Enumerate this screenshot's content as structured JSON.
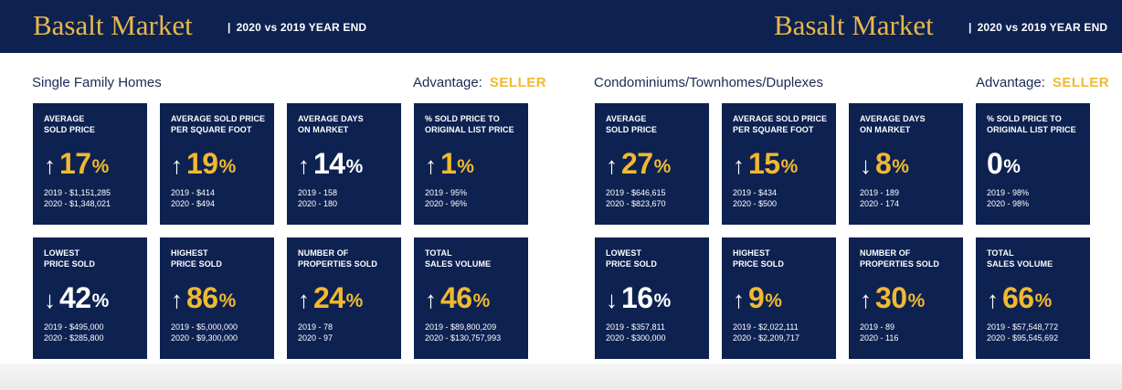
{
  "panels": [
    {
      "brand": "Basalt Market",
      "subtitle": "2020 vs 2019 YEAR END",
      "section": "Single Family Homes",
      "advantage_label": "Advantage:",
      "advantage_value": "SELLER",
      "cards": [
        {
          "label1": "AVERAGE",
          "label2": "SOLD PRICE",
          "direction": "up",
          "value": "17",
          "unit": "%",
          "highlight": true,
          "line1": "2019 - $1,151,285",
          "line2": "2020 - $1,348,021"
        },
        {
          "label1": "AVERAGE SOLD PRICE",
          "label2": "PER SQUARE FOOT",
          "direction": "up",
          "value": "19",
          "unit": "%",
          "highlight": true,
          "line1": "2019 - $414",
          "line2": "2020 - $494"
        },
        {
          "label1": "AVERAGE DAYS",
          "label2": "ON MARKET",
          "direction": "up",
          "value": "14",
          "unit": "%",
          "highlight": false,
          "line1": "2019 - 158",
          "line2": "2020 - 180"
        },
        {
          "label1": "% SOLD PRICE TO",
          "label2": "ORIGINAL LIST PRICE",
          "direction": "up",
          "value": "1",
          "unit": "%",
          "highlight": true,
          "line1": "2019 - 95%",
          "line2": "2020 - 96%"
        },
        {
          "label1": "LOWEST",
          "label2": "PRICE SOLD",
          "direction": "down",
          "value": "42",
          "unit": "%",
          "highlight": false,
          "line1": "2019 - $495,000",
          "line2": "2020 - $285,800"
        },
        {
          "label1": "HIGHEST",
          "label2": "PRICE SOLD",
          "direction": "up",
          "value": "86",
          "unit": "%",
          "highlight": true,
          "line1": "2019 - $5,000,000",
          "line2": "2020 - $9,300,000"
        },
        {
          "label1": "NUMBER OF",
          "label2": "PROPERTIES SOLD",
          "direction": "up",
          "value": "24",
          "unit": "%",
          "highlight": true,
          "line1": "2019 - 78",
          "line2": "2020 - 97"
        },
        {
          "label1": "TOTAL",
          "label2": "SALES VOLUME",
          "direction": "up",
          "value": "46",
          "unit": "%",
          "highlight": true,
          "line1": "2019 - $89,800,209",
          "line2": "2020 - $130,757,993"
        }
      ]
    },
    {
      "brand": "Basalt Market",
      "subtitle": "2020 vs 2019 YEAR END",
      "section": "Condominiums/Townhomes/Duplexes",
      "advantage_label": "Advantage:",
      "advantage_value": "SELLER",
      "cards": [
        {
          "label1": "AVERAGE",
          "label2": "SOLD PRICE",
          "direction": "up",
          "value": "27",
          "unit": "%",
          "highlight": true,
          "line1": "2019 - $646,615",
          "line2": "2020 - $823,670"
        },
        {
          "label1": "AVERAGE SOLD PRICE",
          "label2": "PER SQUARE FOOT",
          "direction": "up",
          "value": "15",
          "unit": "%",
          "highlight": true,
          "line1": "2019 - $434",
          "line2": "2020 - $500"
        },
        {
          "label1": "AVERAGE DAYS",
          "label2": "ON MARKET",
          "direction": "down",
          "value": "8",
          "unit": "%",
          "highlight": true,
          "line1": "2019 - 189",
          "line2": "2020 - 174"
        },
        {
          "label1": "% SOLD PRICE TO",
          "label2": "ORIGINAL LIST PRICE",
          "direction": "none",
          "value": "0",
          "unit": "%",
          "highlight": false,
          "line1": "2019 - 98%",
          "line2": "2020 - 98%"
        },
        {
          "label1": "LOWEST",
          "label2": "PRICE SOLD",
          "direction": "down",
          "value": "16",
          "unit": "%",
          "highlight": false,
          "line1": "2019 - $357,811",
          "line2": "2020 - $300,000"
        },
        {
          "label1": "HIGHEST",
          "label2": "PRICE SOLD",
          "direction": "up",
          "value": "9",
          "unit": "%",
          "highlight": true,
          "line1": "2019 - $2,022,111",
          "line2": "2020 - $2,209,717"
        },
        {
          "label1": "NUMBER OF",
          "label2": "PROPERTIES SOLD",
          "direction": "up",
          "value": "30",
          "unit": "%",
          "highlight": true,
          "line1": "2019 - 89",
          "line2": "2020 - 116"
        },
        {
          "label1": "TOTAL",
          "label2": "SALES VOLUME",
          "direction": "up",
          "value": "66",
          "unit": "%",
          "highlight": true,
          "line1": "2019 - $57,548,772",
          "line2": "2020 - $95,545,692"
        }
      ]
    }
  ],
  "colors": {
    "navy": "#0e2251",
    "gold": "#f1b931",
    "brand_gold": "#e8b84a",
    "white": "#ffffff"
  }
}
